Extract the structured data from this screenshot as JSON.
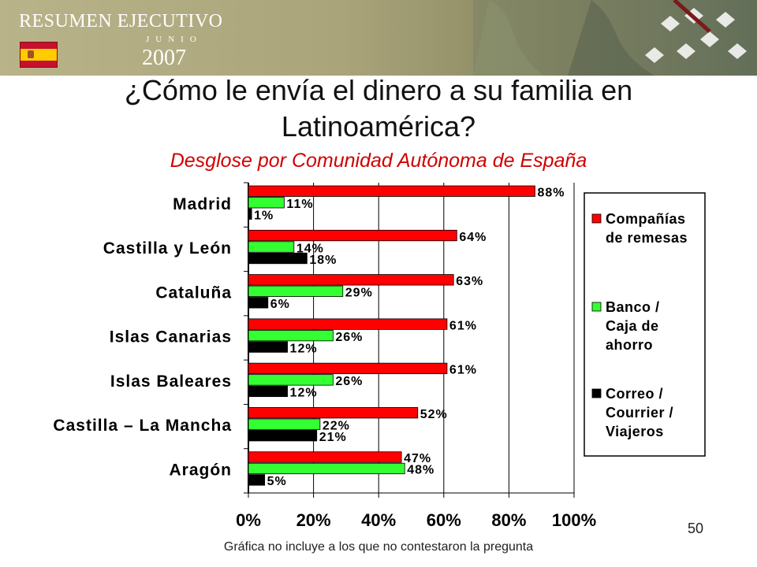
{
  "header": {
    "brand_title": "RESUMEN EJECUTIVO",
    "brand_month": "JUNIO",
    "brand_year": "2007",
    "flag_icon": "spain-flag-icon"
  },
  "title": "¿Cómo le envía el dinero a su familia en Latinoamérica?",
  "subtitle": "Desglose por Comunidad Autónoma de España",
  "page_number": "50",
  "footnote": "Gráfica no incluye a los que no contestaron la pregunta",
  "chart_data": {
    "type": "bar",
    "orientation": "horizontal",
    "categories": [
      "Madrid",
      "Castilla y León",
      "Cataluña",
      "Islas Canarias",
      "Islas Baleares",
      "Castilla – La Mancha",
      "Aragón"
    ],
    "series": [
      {
        "name": "Compañías de remesas",
        "color": "#ff0000",
        "values": [
          88,
          64,
          63,
          61,
          61,
          52,
          47
        ],
        "labels": [
          "88%",
          "64%",
          "63%",
          "61%",
          "61%",
          "52%",
          "47%"
        ]
      },
      {
        "name": "Banco / Caja de ahorro",
        "color": "#33ff33",
        "values": [
          11,
          14,
          29,
          26,
          26,
          22,
          48
        ],
        "labels": [
          "11%",
          "14%",
          "29%",
          "26%",
          "26%",
          "22%",
          "48%"
        ]
      },
      {
        "name": "Correo / Courrier / Viajeros",
        "color": "#000000",
        "values": [
          1,
          18,
          6,
          12,
          12,
          21,
          5
        ],
        "labels": [
          "1%",
          "18%",
          "6%",
          "12%",
          "12%",
          "21%",
          "5%"
        ]
      }
    ],
    "legend_lines": [
      [
        "Compañías",
        "de remesas"
      ],
      [
        "Banco /",
        "Caja de",
        "ahorro"
      ],
      [
        "Correo /",
        "Courrier /",
        "Viajeros"
      ]
    ],
    "xticks": [
      "0%",
      "20%",
      "40%",
      "60%",
      "80%",
      "100%"
    ],
    "xlim": [
      0,
      100
    ],
    "grid": true,
    "legend_position": "right"
  }
}
